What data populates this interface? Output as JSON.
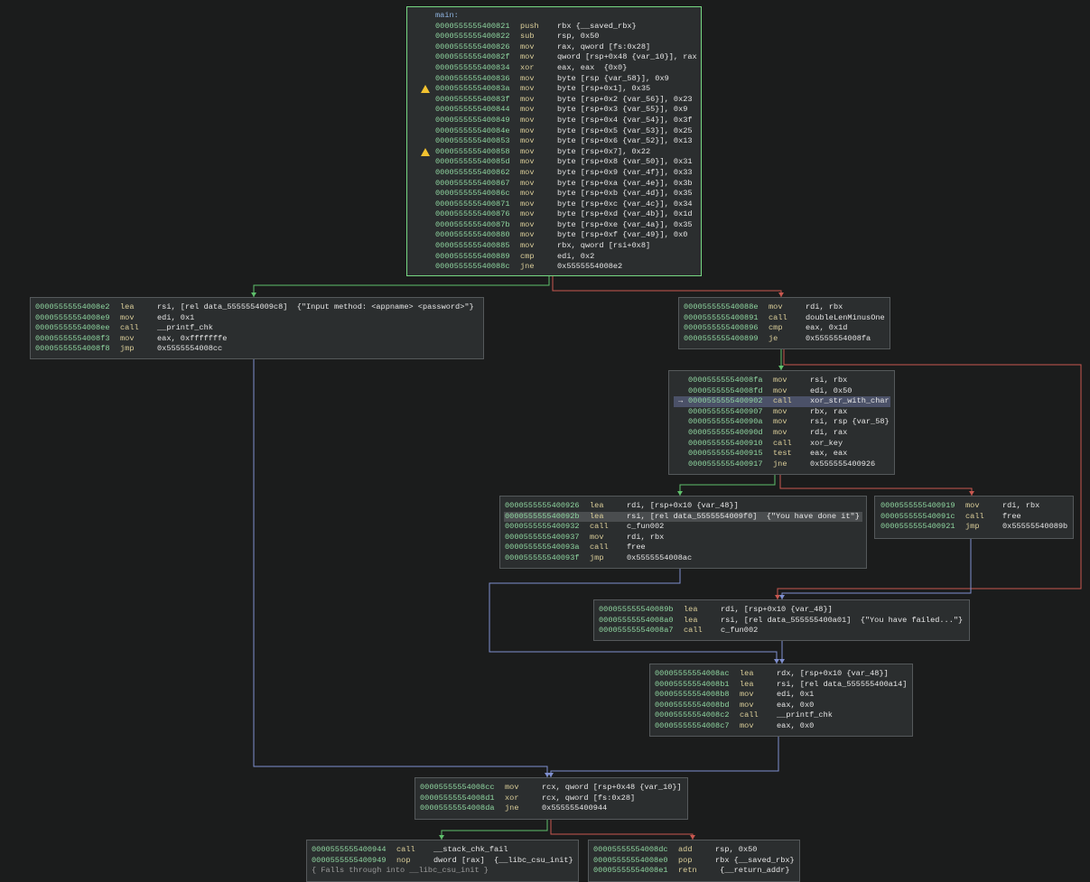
{
  "colors": {
    "true_edge": "#5fc06c",
    "false_edge": "#c8574f",
    "jump_edge": "#7f8fcf",
    "selected_border": "#77d883"
  },
  "blocks": [
    {
      "id": "b0",
      "selected": true,
      "label": "main:",
      "lines": [
        {
          "addr": "0000555555400821",
          "mnem": "push",
          "ops": "rbx {__saved_rbx}"
        },
        {
          "addr": "0000555555400822",
          "mnem": "sub",
          "ops": "rsp, 0x50"
        },
        {
          "addr": "0000555555400826",
          "mnem": "mov",
          "ops": "rax, qword [fs:0x28]"
        },
        {
          "addr": "000055555540082f",
          "mnem": "mov",
          "ops": "qword [rsp+0x48 {var_10}], rax"
        },
        {
          "addr": "0000555555400834",
          "mnem": "xor",
          "ops": "eax, eax  {0x0}"
        },
        {
          "addr": "0000555555400836",
          "mnem": "mov",
          "ops": "byte [rsp {var_58}], 0x9"
        },
        {
          "addr": "000055555540083a",
          "mnem": "mov",
          "ops": "byte [rsp+0x1], 0x35",
          "warn": true
        },
        {
          "addr": "000055555540083f",
          "mnem": "mov",
          "ops": "byte [rsp+0x2 {var_56}], 0x23"
        },
        {
          "addr": "0000555555400844",
          "mnem": "mov",
          "ops": "byte [rsp+0x3 {var_55}], 0x9"
        },
        {
          "addr": "0000555555400849",
          "mnem": "mov",
          "ops": "byte [rsp+0x4 {var_54}], 0x3f"
        },
        {
          "addr": "000055555540084e",
          "mnem": "mov",
          "ops": "byte [rsp+0x5 {var_53}], 0x25"
        },
        {
          "addr": "0000555555400853",
          "mnem": "mov",
          "ops": "byte [rsp+0x6 {var_52}], 0x13"
        },
        {
          "addr": "0000555555400858",
          "mnem": "mov",
          "ops": "byte [rsp+0x7], 0x22",
          "warn": true
        },
        {
          "addr": "000055555540085d",
          "mnem": "mov",
          "ops": "byte [rsp+0x8 {var_50}], 0x31"
        },
        {
          "addr": "0000555555400862",
          "mnem": "mov",
          "ops": "byte [rsp+0x9 {var_4f}], 0x33"
        },
        {
          "addr": "0000555555400867",
          "mnem": "mov",
          "ops": "byte [rsp+0xa {var_4e}], 0x3b"
        },
        {
          "addr": "000055555540086c",
          "mnem": "mov",
          "ops": "byte [rsp+0xb {var_4d}], 0x35"
        },
        {
          "addr": "0000555555400871",
          "mnem": "mov",
          "ops": "byte [rsp+0xc {var_4c}], 0x34"
        },
        {
          "addr": "0000555555400876",
          "mnem": "mov",
          "ops": "byte [rsp+0xd {var_4b}], 0x1d"
        },
        {
          "addr": "000055555540087b",
          "mnem": "mov",
          "ops": "byte [rsp+0xe {var_4a}], 0x35"
        },
        {
          "addr": "0000555555400880",
          "mnem": "mov",
          "ops": "byte [rsp+0xf {var_49}], 0x0"
        },
        {
          "addr": "0000555555400885",
          "mnem": "mov",
          "ops": "rbx, qword [rsi+0x8]"
        },
        {
          "addr": "0000555555400889",
          "mnem": "cmp",
          "ops": "edi, 0x2"
        },
        {
          "addr": "000055555540088c",
          "mnem": "jne",
          "ops": "0x5555554008e2"
        }
      ]
    },
    {
      "id": "b1",
      "lines": [
        {
          "addr": "00005555554008e2",
          "mnem": "lea",
          "ops": "rsi, [rel data_5555554009c8]  {\"Input method: <appname> <password>\"}"
        },
        {
          "addr": "00005555554008e9",
          "mnem": "mov",
          "ops": "edi, 0x1"
        },
        {
          "addr": "00005555554008ee",
          "mnem": "call",
          "ops": "__printf_chk"
        },
        {
          "addr": "00005555554008f3",
          "mnem": "mov",
          "ops": "eax, 0xfffffffe"
        },
        {
          "addr": "00005555554008f8",
          "mnem": "jmp",
          "ops": "0x5555554008cc"
        }
      ]
    },
    {
      "id": "b2",
      "lines": [
        {
          "addr": "000055555540088e",
          "mnem": "mov",
          "ops": "rdi, rbx"
        },
        {
          "addr": "0000555555400891",
          "mnem": "call",
          "ops": "doubleLenMinusOne"
        },
        {
          "addr": "0000555555400896",
          "mnem": "cmp",
          "ops": "eax, 0x1d"
        },
        {
          "addr": "0000555555400899",
          "mnem": "je",
          "ops": "0x5555554008fa"
        }
      ]
    },
    {
      "id": "b3",
      "lines": [
        {
          "addr": "00005555554008fa",
          "mnem": "mov",
          "ops": "rsi, rbx"
        },
        {
          "addr": "00005555554008fd",
          "mnem": "mov",
          "ops": "edi, 0x50"
        },
        {
          "addr": "0000555555400902",
          "mnem": "call",
          "ops": "xor_str_with_char",
          "current": true
        },
        {
          "addr": "0000555555400907",
          "mnem": "mov",
          "ops": "rbx, rax"
        },
        {
          "addr": "000055555540090a",
          "mnem": "mov",
          "ops": "rsi, rsp {var_58}"
        },
        {
          "addr": "000055555540090d",
          "mnem": "mov",
          "ops": "rdi, rax"
        },
        {
          "addr": "0000555555400910",
          "mnem": "call",
          "ops": "xor_key"
        },
        {
          "addr": "0000555555400915",
          "mnem": "test",
          "ops": "eax, eax"
        },
        {
          "addr": "0000555555400917",
          "mnem": "jne",
          "ops": "0x555555400926"
        }
      ]
    },
    {
      "id": "b4",
      "lines": [
        {
          "addr": "0000555555400926",
          "mnem": "lea",
          "ops": "rdi, [rsp+0x10 {var_48}]"
        },
        {
          "addr": "000055555540092b",
          "mnem": "lea",
          "ops": "rsi, [rel data_5555554009f0]  {\"You have done it\"}",
          "selected": true,
          "highlight": "data_5555554009f0"
        },
        {
          "addr": "0000555555400932",
          "mnem": "call",
          "ops": "c_fun002"
        },
        {
          "addr": "0000555555400937",
          "mnem": "mov",
          "ops": "rdi, rbx"
        },
        {
          "addr": "000055555540093a",
          "mnem": "call",
          "ops": "free"
        },
        {
          "addr": "000055555540093f",
          "mnem": "jmp",
          "ops": "0x5555554008ac"
        }
      ]
    },
    {
      "id": "b5",
      "lines": [
        {
          "addr": "0000555555400919",
          "mnem": "mov",
          "ops": "rdi, rbx"
        },
        {
          "addr": "000055555540091c",
          "mnem": "call",
          "ops": "free"
        },
        {
          "addr": "0000555555400921",
          "mnem": "jmp",
          "ops": "0x55555540089b"
        }
      ]
    },
    {
      "id": "b6",
      "lines": [
        {
          "addr": "000055555540089b",
          "mnem": "lea",
          "ops": "rdi, [rsp+0x10 {var_48}]"
        },
        {
          "addr": "00005555554008a0",
          "mnem": "lea",
          "ops": "rsi, [rel data_555555400a01]  {\"You have failed...\"}"
        },
        {
          "addr": "00005555554008a7",
          "mnem": "call",
          "ops": "c_fun002"
        }
      ]
    },
    {
      "id": "b7",
      "lines": [
        {
          "addr": "00005555554008ac",
          "mnem": "lea",
          "ops": "rdx, [rsp+0x10 {var_48}]"
        },
        {
          "addr": "00005555554008b1",
          "mnem": "lea",
          "ops": "rsi, [rel data_555555400a14]"
        },
        {
          "addr": "00005555554008b8",
          "mnem": "mov",
          "ops": "edi, 0x1"
        },
        {
          "addr": "00005555554008bd",
          "mnem": "mov",
          "ops": "eax, 0x0"
        },
        {
          "addr": "00005555554008c2",
          "mnem": "call",
          "ops": "__printf_chk"
        },
        {
          "addr": "00005555554008c7",
          "mnem": "mov",
          "ops": "eax, 0x0"
        }
      ]
    },
    {
      "id": "b8",
      "lines": [
        {
          "addr": "00005555554008cc",
          "mnem": "mov",
          "ops": "rcx, qword [rsp+0x48 {var_10}]"
        },
        {
          "addr": "00005555554008d1",
          "mnem": "xor",
          "ops": "rcx, qword [fs:0x28]"
        },
        {
          "addr": "00005555554008da",
          "mnem": "jne",
          "ops": "0x555555400944"
        }
      ]
    },
    {
      "id": "b9",
      "note": "{ Falls through into __libc_csu_init }",
      "lines": [
        {
          "addr": "0000555555400944",
          "mnem": "call",
          "ops": "__stack_chk_fail"
        },
        {
          "addr": "0000555555400949",
          "mnem": "nop",
          "ops": "dword [rax]  {__libc_csu_init}"
        }
      ]
    },
    {
      "id": "b10",
      "lines": [
        {
          "addr": "00005555554008dc",
          "mnem": "add",
          "ops": "rsp, 0x50"
        },
        {
          "addr": "00005555554008e0",
          "mnem": "pop",
          "ops": "rbx {__saved_rbx}"
        },
        {
          "addr": "00005555554008e1",
          "mnem": "retn",
          "ops": " {__return_addr}"
        }
      ]
    }
  ],
  "edges": [
    {
      "from": "b0",
      "to": "b1",
      "kind": "true_edge"
    },
    {
      "from": "b0",
      "to": "b2",
      "kind": "false_edge"
    },
    {
      "from": "b1",
      "to": "b8",
      "kind": "jump_edge"
    },
    {
      "from": "b2",
      "to": "b3",
      "kind": "true_edge"
    },
    {
      "from": "b2",
      "to": "b6",
      "kind": "false_edge"
    },
    {
      "from": "b3",
      "to": "b4",
      "kind": "true_edge"
    },
    {
      "from": "b3",
      "to": "b5",
      "kind": "false_edge"
    },
    {
      "from": "b4",
      "to": "b7",
      "kind": "jump_edge"
    },
    {
      "from": "b5",
      "to": "b6",
      "kind": "jump_edge"
    },
    {
      "from": "b6",
      "to": "b7",
      "kind": "jump_edge"
    },
    {
      "from": "b7",
      "to": "b8",
      "kind": "jump_edge"
    },
    {
      "from": "b8",
      "to": "b9",
      "kind": "true_edge"
    },
    {
      "from": "b8",
      "to": "b10",
      "kind": "false_edge"
    }
  ]
}
